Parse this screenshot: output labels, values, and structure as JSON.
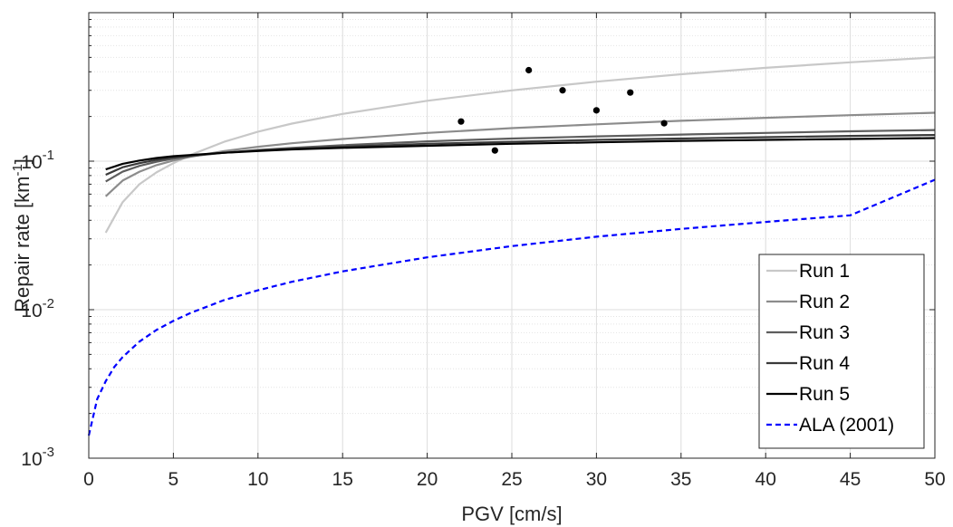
{
  "chart_data": {
    "type": "line",
    "xlabel": "PGV [cm/s]",
    "ylabel": "Repair rate [km^-1]",
    "xlim": [
      0,
      50
    ],
    "ylim": [
      0.001,
      1
    ],
    "yscale": "log",
    "grid": true,
    "minor_grid": true,
    "legend_position": "bottom-right",
    "x_ticks": [
      0,
      5,
      10,
      15,
      20,
      25,
      30,
      35,
      40,
      45,
      50
    ],
    "x_tick_labels": [
      "0",
      "5",
      "10",
      "15",
      "20",
      "25",
      "30",
      "35",
      "40",
      "45",
      "50"
    ],
    "y_ticks": [
      0.001,
      0.01,
      0.1
    ],
    "y_tick_labels": [
      {
        "base": "10",
        "exp": "-3"
      },
      {
        "base": "10",
        "exp": "-2"
      },
      {
        "base": "10",
        "exp": "-1"
      }
    ],
    "series": [
      {
        "name": "Run 1",
        "color": "#c8c8c8",
        "dash": "solid",
        "x": [
          1,
          2,
          3,
          4,
          5,
          6,
          8,
          10,
          12,
          15,
          20,
          25,
          30,
          35,
          40,
          45,
          50
        ],
        "y": [
          0.033,
          0.053,
          0.07,
          0.084,
          0.097,
          0.11,
          0.135,
          0.158,
          0.179,
          0.208,
          0.255,
          0.3,
          0.343,
          0.385,
          0.425,
          0.463,
          0.5
        ]
      },
      {
        "name": "Run 2",
        "color": "#8c8c8c",
        "dash": "solid",
        "x": [
          1,
          2,
          3,
          4,
          5,
          6,
          8,
          10,
          12,
          15,
          20,
          25,
          30,
          35,
          40,
          45,
          50
        ],
        "y": [
          0.058,
          0.074,
          0.085,
          0.094,
          0.101,
          0.107,
          0.117,
          0.125,
          0.132,
          0.141,
          0.155,
          0.167,
          0.177,
          0.187,
          0.196,
          0.204,
          0.212
        ]
      },
      {
        "name": "Run 3",
        "color": "#5e5e5e",
        "dash": "solid",
        "x": [
          1,
          2,
          3,
          4,
          5,
          6,
          8,
          10,
          12,
          15,
          20,
          25,
          30,
          35,
          40,
          45,
          50
        ],
        "y": [
          0.073,
          0.085,
          0.093,
          0.099,
          0.104,
          0.108,
          0.114,
          0.119,
          0.123,
          0.128,
          0.136,
          0.142,
          0.147,
          0.151,
          0.155,
          0.159,
          0.162
        ]
      },
      {
        "name": "Run 4",
        "color": "#3a3a3a",
        "dash": "solid",
        "x": [
          1,
          2,
          3,
          4,
          5,
          6,
          8,
          10,
          12,
          15,
          20,
          25,
          30,
          35,
          40,
          45,
          50
        ],
        "y": [
          0.081,
          0.091,
          0.097,
          0.102,
          0.106,
          0.109,
          0.114,
          0.118,
          0.121,
          0.125,
          0.131,
          0.135,
          0.139,
          0.142,
          0.145,
          0.148,
          0.15
        ]
      },
      {
        "name": "Run 5",
        "color": "#000000",
        "dash": "solid",
        "x": [
          1,
          2,
          3,
          4,
          5,
          6,
          8,
          10,
          12,
          15,
          20,
          25,
          30,
          35,
          40,
          45,
          50
        ],
        "y": [
          0.088,
          0.096,
          0.101,
          0.105,
          0.108,
          0.11,
          0.114,
          0.117,
          0.12,
          0.123,
          0.127,
          0.131,
          0.134,
          0.137,
          0.139,
          0.141,
          0.143
        ]
      },
      {
        "name": "ALA (2001)",
        "color": "#0000ff",
        "dash": "dashed",
        "x": [
          0,
          0.5,
          1,
          1.5,
          2,
          3,
          4,
          5,
          6,
          8,
          10,
          12,
          15,
          20,
          25,
          30,
          35,
          40,
          45,
          50
        ],
        "y": [
          0.00142,
          0.0025,
          0.0033,
          0.0041,
          0.0048,
          0.0061,
          0.0073,
          0.0084,
          0.0095,
          0.0116,
          0.0135,
          0.0154,
          0.0181,
          0.0225,
          0.0268,
          0.031,
          0.035,
          0.039,
          0.0432,
          0.075
        ]
      }
    ],
    "points": {
      "color": "#000000",
      "x": [
        22,
        24,
        26,
        28,
        30,
        32,
        34
      ],
      "y": [
        0.185,
        0.118,
        0.41,
        0.3,
        0.22,
        0.29,
        0.18
      ]
    }
  }
}
